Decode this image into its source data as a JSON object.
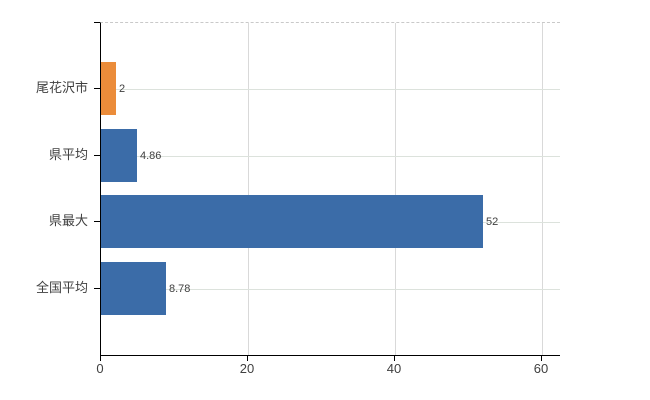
{
  "chart_data": {
    "type": "bar",
    "orientation": "horizontal",
    "title": "",
    "categories": [
      "尾花沢市",
      "県平均",
      "県最大",
      "全国平均"
    ],
    "values": [
      2,
      4.86,
      52,
      8.78
    ],
    "value_labels": [
      "2",
      "4.86",
      "52",
      "8.78"
    ],
    "series": [
      {
        "name": "",
        "values": [
          2,
          4.86,
          52,
          8.78
        ]
      }
    ],
    "bar_colors": [
      "#eb8c3a",
      "#3b6ca8",
      "#3b6ca8",
      "#3b6ca8"
    ],
    "x_ticks": [
      0,
      20,
      40,
      60
    ],
    "x_tick_labels": [
      "0",
      "20",
      "40",
      "60"
    ],
    "xlim": [
      0,
      62.4
    ],
    "xlabel": "",
    "ylabel": "",
    "grid": true,
    "legend": "none",
    "colors": {
      "axis": "#000000",
      "grid": "#d9d9d9",
      "top_border_dashed": "#c9c9c9",
      "text": "#404040",
      "highlight_bar": "#eb8c3a",
      "default_bar": "#3b6ca8",
      "background": "#ffffff"
    }
  }
}
